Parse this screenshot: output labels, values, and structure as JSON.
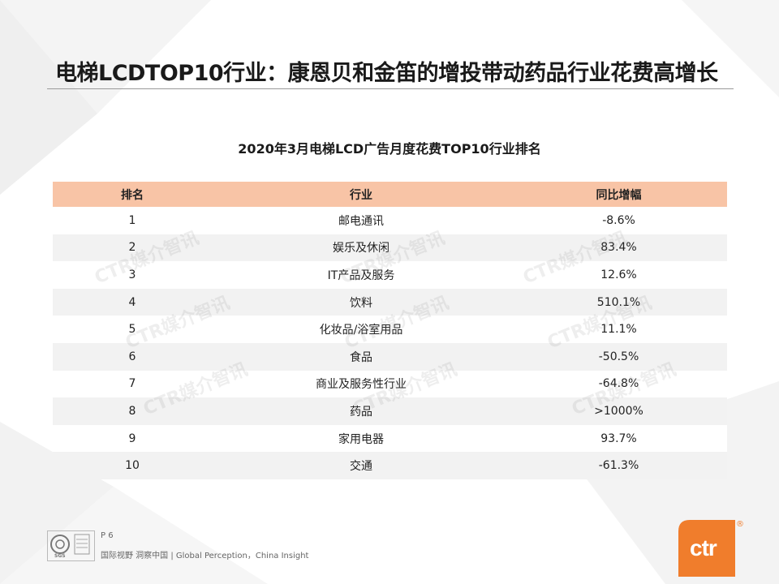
{
  "title": "电梯LCDTOP10行业：康恩贝和金笛的增投带动药品行业花费高增长",
  "subtitle": "2020年3月电梯LCD广告月度花费TOP10行业排名",
  "table": {
    "headers": [
      "排名",
      "行业",
      "同比增幅"
    ],
    "rows": [
      {
        "rank": "1",
        "industry": "邮电通讯",
        "change": "-8.6%"
      },
      {
        "rank": "2",
        "industry": "娱乐及休闲",
        "change": "83.4%"
      },
      {
        "rank": "3",
        "industry": "IT产品及服务",
        "change": "12.6%"
      },
      {
        "rank": "4",
        "industry": "饮料",
        "change": "510.1%"
      },
      {
        "rank": "5",
        "industry": "化妆品/浴室用品",
        "change": "11.1%"
      },
      {
        "rank": "6",
        "industry": "食品",
        "change": "-50.5%"
      },
      {
        "rank": "7",
        "industry": "商业及服务性行业",
        "change": "-64.8%"
      },
      {
        "rank": "8",
        "industry": "药品",
        "change": ">1000%"
      },
      {
        "rank": "9",
        "industry": "家用电器",
        "change": "93.7%"
      },
      {
        "rank": "10",
        "industry": "交通",
        "change": "-61.3%"
      }
    ]
  },
  "watermark": "CTR媒介智讯",
  "footer": {
    "page": "P 6",
    "slogan": "国际视野 洞察中国 | Global Perception，China Insight",
    "cert_text": "SGS",
    "logo_text": "ctr",
    "logo_reg": "®"
  },
  "colors": {
    "header_bg": "#f8c4a6",
    "row_alt": "#f2f2f2",
    "brand_orange": "#f07d2c"
  }
}
